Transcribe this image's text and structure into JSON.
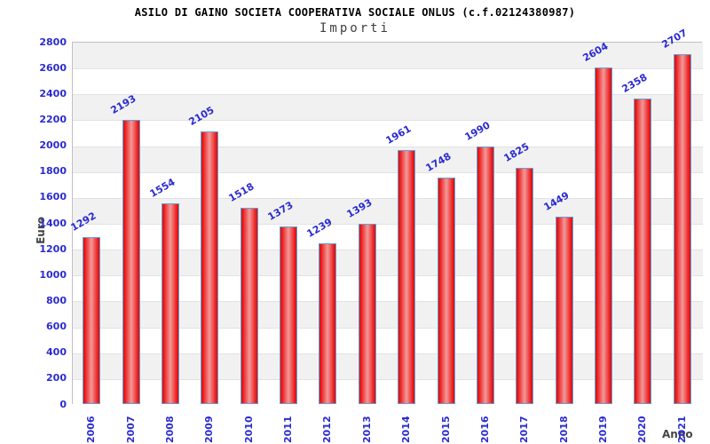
{
  "header": {
    "title": "ASILO DI GAINO SOCIETA COOPERATIVA SOCIALE ONLUS (c.f.02124380987)",
    "subtitle": "Importi"
  },
  "chart_data": {
    "type": "bar",
    "title": "ASILO DI GAINO SOCIETA COOPERATIVA SOCIALE ONLUS (c.f.02124380987)",
    "subtitle": "Importi",
    "xlabel": "Anno",
    "ylabel": "Euro",
    "categories": [
      "2006",
      "2007",
      "2008",
      "2009",
      "2010",
      "2011",
      "2012",
      "2013",
      "2014",
      "2015",
      "2016",
      "2017",
      "2018",
      "2019",
      "2020",
      "2021"
    ],
    "values": [
      1292,
      2193,
      1554,
      2105,
      1518,
      1373,
      1239,
      1393,
      1961,
      1748,
      1990,
      1825,
      1449,
      2604,
      2358,
      2707
    ],
    "ylim": [
      0,
      2800
    ],
    "ytick_step": 200,
    "grid": "horizontal-bands",
    "legend": "none",
    "colors": {
      "tick_label_blue": "#2b2bd0",
      "value_label_blue": "#2b2bd0",
      "axis_title_gray": "#454545",
      "subtitle_gray": "#3f3f3f",
      "title_black": "#000000",
      "band_gray": "#f1f1f1",
      "band_white": "#ffffff",
      "gridline": "#e2e2e2",
      "plot_border": "#c0c0c0",
      "bar_red_edge": "#d40f0f",
      "bar_red_bright": "#ee2020",
      "bar_red_mid": "#f29a9a",
      "bar_border_blue": "#62a0d8"
    }
  }
}
